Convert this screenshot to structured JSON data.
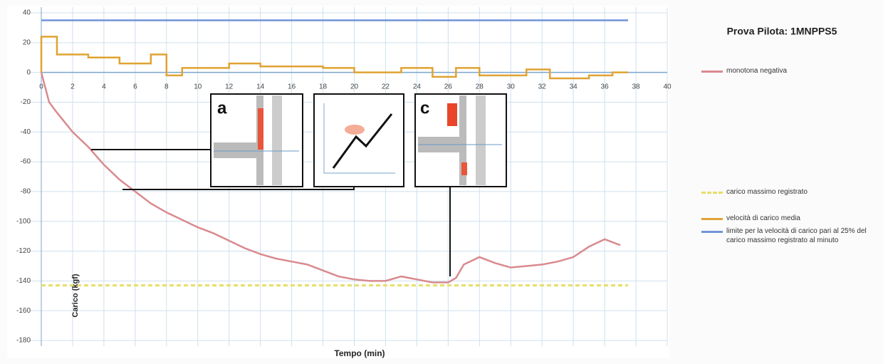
{
  "chart_data": {
    "type": "line",
    "title": "Prova Pilota: 1MNPPS5",
    "xlabel": "Tempo (min)",
    "ylabel": "Carico (kgf)",
    "xlim": [
      0,
      40
    ],
    "ylim": [
      -180,
      40
    ],
    "xticks": [
      0,
      2,
      4,
      6,
      8,
      10,
      12,
      14,
      16,
      18,
      20,
      22,
      24,
      26,
      28,
      30,
      32,
      34,
      36,
      38,
      40
    ],
    "yticks": [
      -180,
      -160,
      -140,
      -120,
      -100,
      -80,
      -60,
      -40,
      -20,
      0,
      20,
      40
    ],
    "grid": true,
    "legend": "right",
    "annotations": [
      {
        "text": "a"
      },
      {
        "text": "c"
      }
    ],
    "series": [
      {
        "name": "monotona negativa",
        "color": "#d98a8e",
        "dash": false,
        "x": [
          0,
          0.5,
          1,
          2,
          3,
          4,
          5,
          6,
          7,
          8,
          9,
          10,
          11,
          12,
          13,
          14,
          15,
          16,
          17,
          18,
          19,
          20,
          21,
          22,
          23,
          24,
          25,
          26,
          26.5,
          27,
          28,
          29,
          30,
          31,
          32,
          33,
          34,
          35,
          36,
          37
        ],
        "values": [
          0,
          -20,
          -27,
          -40,
          -50,
          -62,
          -72,
          -80,
          -88,
          -94,
          -99,
          -104,
          -108,
          -113,
          -118,
          -122,
          -125,
          -127,
          -129,
          -133,
          -137,
          -139,
          -140,
          -140,
          -137,
          -139,
          -141,
          -141,
          -138,
          -129,
          -124,
          -128,
          -131,
          -130,
          -129,
          -127,
          -124,
          -117,
          -112,
          -116
        ]
      },
      {
        "name": "carico massimo registrato",
        "color": "#e6de6a",
        "dash": true,
        "x": [
          0,
          37.5
        ],
        "values": [
          -143,
          -143
        ]
      },
      {
        "name": "velocità di carico media",
        "color": "#e0a232",
        "dash": false,
        "x": [
          0,
          0,
          1,
          1,
          3,
          3,
          5,
          5,
          7,
          7,
          8,
          8,
          9,
          9,
          12,
          12,
          14,
          14,
          18,
          18,
          20,
          20,
          23,
          23,
          25,
          25,
          26.5,
          26.5,
          28,
          28,
          31,
          31,
          32.5,
          32.5,
          35,
          35,
          36.5,
          36.5,
          37.5
        ],
        "values": [
          0,
          24,
          24,
          12,
          12,
          10,
          10,
          6,
          6,
          12,
          12,
          -2,
          -2,
          3,
          3,
          6,
          6,
          4,
          4,
          3,
          3,
          0,
          0,
          3,
          3,
          -3,
          -3,
          3,
          3,
          -2,
          -2,
          2,
          2,
          -4,
          -4,
          -2,
          -2,
          0,
          0
        ]
      },
      {
        "name": "limite per la velocità di carico pari al 25% del carico massimo registrato al minuto",
        "color": "#7094d8",
        "dash": false,
        "x": [
          0,
          37.5
        ],
        "values": [
          35,
          35
        ]
      }
    ]
  }
}
